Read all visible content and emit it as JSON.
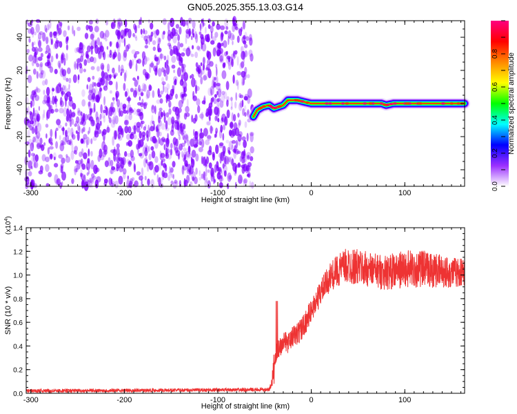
{
  "title": "GN05.2025.355.13.03.G14",
  "chart_data": [
    {
      "type": "heatmap",
      "xlabel": "Height of straight line (km)",
      "ylabel": "Frequency (Hz)",
      "xlim": [
        -305,
        164
      ],
      "ylim": [
        -50,
        50
      ],
      "x_ticks": [
        -300,
        -200,
        -100,
        0,
        100
      ],
      "y_ticks": [
        -40,
        -20,
        0,
        20,
        40
      ],
      "colorbar": {
        "label": "Normalized spectral amplitude",
        "range": [
          0,
          1
        ],
        "ticks": [
          "0.0",
          "0.2",
          "0.4",
          "0.6",
          "0.8"
        ],
        "tick_values": [
          0,
          0.2,
          0.4,
          0.6,
          0.8
        ],
        "colors": [
          "#ffffff",
          "#9b30ff",
          "#0000ff",
          "#00ffff",
          "#00ff00",
          "#ffff00",
          "#ff8800",
          "#ff0000",
          "#ff0080"
        ]
      },
      "noise_region": {
        "x_start": -305,
        "x_end": -63,
        "color": "#7f00ff"
      },
      "ridge": [
        {
          "x": -62,
          "y": -8
        },
        {
          "x": -58,
          "y": -4
        },
        {
          "x": -52,
          "y": -2
        },
        {
          "x": -45,
          "y": -1
        },
        {
          "x": -40,
          "y": -3
        },
        {
          "x": -35,
          "y": -2
        },
        {
          "x": -30,
          "y": -1
        },
        {
          "x": -25,
          "y": 2
        },
        {
          "x": -15,
          "y": 2
        },
        {
          "x": -8,
          "y": 1
        },
        {
          "x": 0,
          "y": 0
        },
        {
          "x": 20,
          "y": 0
        },
        {
          "x": 40,
          "y": 0
        },
        {
          "x": 55,
          "y": 0
        },
        {
          "x": 65,
          "y": 0
        },
        {
          "x": 75,
          "y": 0
        },
        {
          "x": 80,
          "y": -1
        },
        {
          "x": 88,
          "y": 0
        },
        {
          "x": 100,
          "y": 0
        },
        {
          "x": 115,
          "y": 0
        },
        {
          "x": 130,
          "y": 0
        },
        {
          "x": 145,
          "y": 0
        },
        {
          "x": 164,
          "y": 0
        }
      ]
    },
    {
      "type": "line",
      "xlabel": "Height of straight line (km)",
      "ylabel": "SNR (10 * v/v)",
      "y_multiplier": "(x10",
      "y_multiplier_exp": "4",
      "y_multiplier_close": ")",
      "xlim": [
        -305,
        164
      ],
      "ylim": [
        0,
        1.4
      ],
      "x_ticks": [
        -300,
        -200,
        -100,
        0,
        100
      ],
      "y_ticks": [
        "0.0",
        "0.2",
        "0.4",
        "0.6",
        "0.8",
        "1.0",
        "1.2",
        "1.4"
      ],
      "y_tick_values": [
        0,
        0.2,
        0.4,
        0.6,
        0.8,
        1.0,
        1.2,
        1.4
      ],
      "color": "#ee3333",
      "envelope": {
        "x": [
          -305,
          -60,
          -45,
          -42,
          -40,
          -38,
          -35,
          -30,
          -25,
          -20,
          -15,
          -10,
          -5,
          0,
          10,
          20,
          30,
          40,
          60,
          80,
          100,
          120,
          140,
          164
        ],
        "mean": [
          0.02,
          0.03,
          0.03,
          0.1,
          0.22,
          0.3,
          0.38,
          0.45,
          0.42,
          0.48,
          0.5,
          0.55,
          0.62,
          0.7,
          0.85,
          0.98,
          1.05,
          1.08,
          1.05,
          1.02,
          1.05,
          1.05,
          1.03,
          1.02
        ],
        "amplitude": [
          0.015,
          0.015,
          0.015,
          0.05,
          0.15,
          0.12,
          0.1,
          0.09,
          0.08,
          0.09,
          0.1,
          0.1,
          0.1,
          0.1,
          0.11,
          0.12,
          0.14,
          0.16,
          0.15,
          0.15,
          0.16,
          0.16,
          0.14,
          0.12
        ]
      }
    }
  ]
}
